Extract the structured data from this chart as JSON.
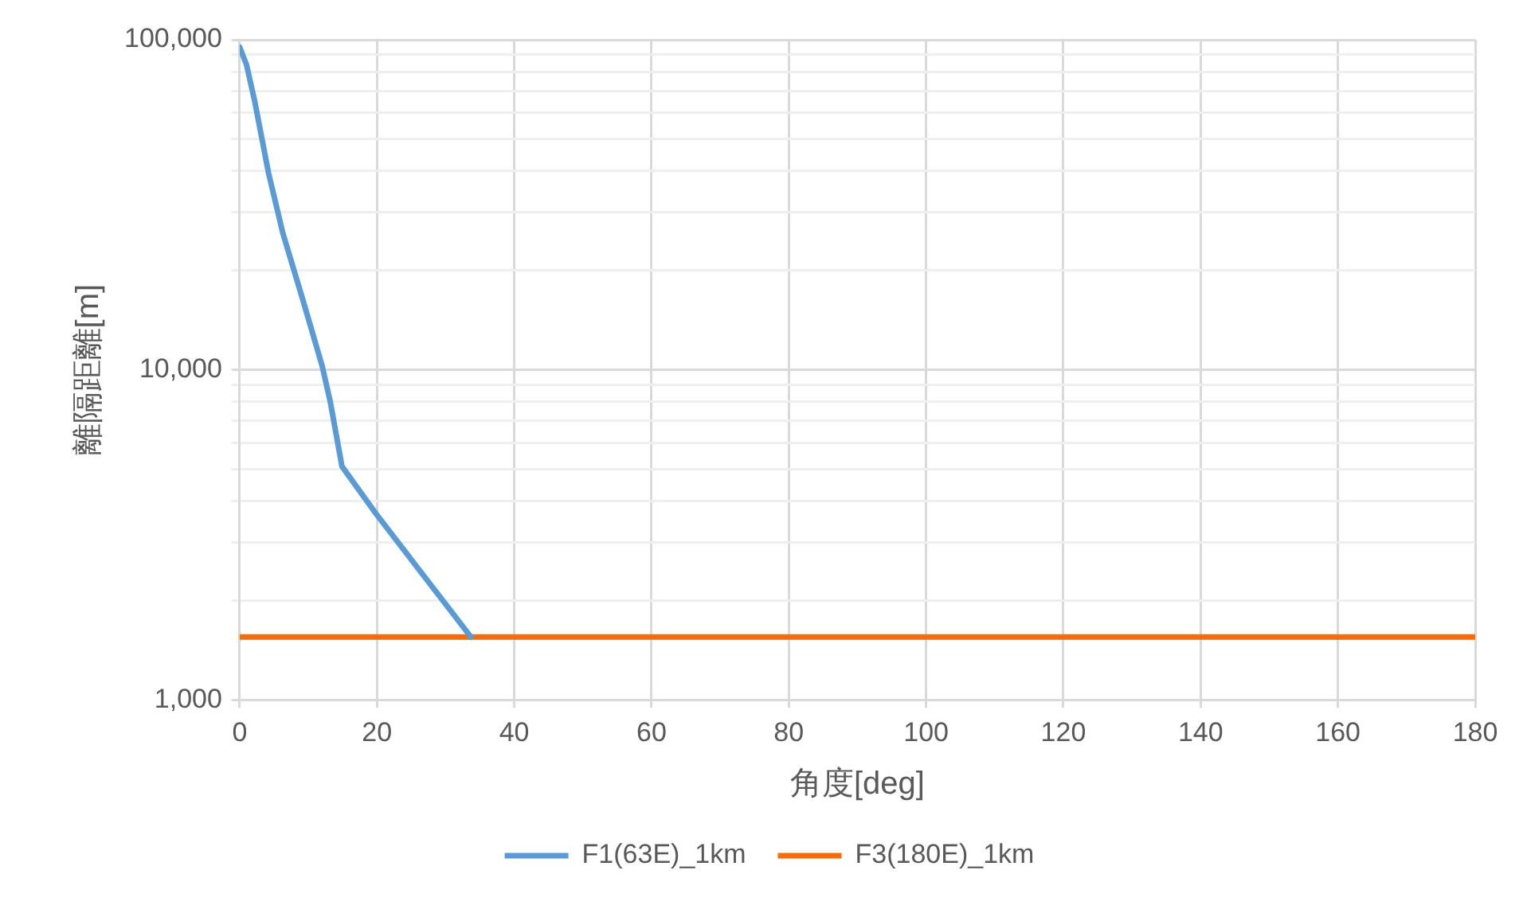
{
  "chart_data": {
    "type": "line",
    "xlabel": "角度[deg]",
    "ylabel": "離隔距離[m]",
    "log": "y",
    "grid": true,
    "legend": "bottom",
    "marker": "none",
    "line_style": "solid",
    "xlim": [
      0,
      180
    ],
    "xticks": [
      0,
      20,
      40,
      60,
      80,
      100,
      120,
      140,
      160,
      180
    ],
    "ylim": [
      1000,
      100000
    ],
    "yticks": [
      {
        "value": 1000,
        "label": "1,000"
      },
      {
        "value": 2000,
        "label": null
      },
      {
        "value": 3000,
        "label": null
      },
      {
        "value": 4000,
        "label": null
      },
      {
        "value": 5000,
        "label": null
      },
      {
        "value": 6000,
        "label": null
      },
      {
        "value": 7000,
        "label": null
      },
      {
        "value": 8000,
        "label": null
      },
      {
        "value": 9000,
        "label": null
      },
      {
        "value": 10000,
        "label": "10,000"
      },
      {
        "value": 20000,
        "label": null
      },
      {
        "value": 30000,
        "label": null
      },
      {
        "value": 40000,
        "label": null
      },
      {
        "value": 50000,
        "label": null
      },
      {
        "value": 60000,
        "label": null
      },
      {
        "value": 70000,
        "label": null
      },
      {
        "value": 80000,
        "label": null
      },
      {
        "value": 90000,
        "label": null
      },
      {
        "value": 100000,
        "label": "100,000"
      }
    ],
    "series": [
      {
        "name": "F1(63E)_1km",
        "color": "#5b9bd5",
        "x": [
          0,
          1,
          2.2,
          4.2,
          6.3,
          9.2,
          12,
          13.2,
          14.9,
          19.8,
          25.5,
          33.7
        ],
        "values": [
          95000,
          84000,
          65000,
          39500,
          25900,
          16300,
          10300,
          8000,
          5100,
          3680,
          2580,
          1550
        ]
      },
      {
        "name": "F3(180E)_1km",
        "color": "#f46d0a",
        "x": [
          0,
          180
        ],
        "values": [
          1550,
          1550
        ]
      }
    ]
  }
}
